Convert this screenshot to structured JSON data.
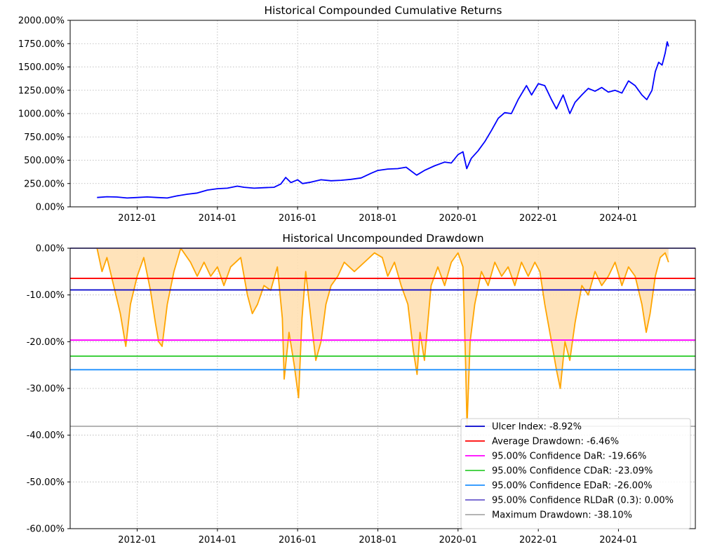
{
  "chart_data": [
    {
      "type": "line",
      "title": "Historical Compounded Cumulative Returns",
      "xlabel": "",
      "ylabel": "",
      "x_ticks": [
        "2012-01",
        "2014-01",
        "2016-01",
        "2018-01",
        "2020-01",
        "2022-01",
        "2024-01"
      ],
      "y_ticks": [
        "0.00%",
        "250.00%",
        "500.00%",
        "750.00%",
        "1000.00%",
        "1250.00%",
        "1500.00%",
        "1750.00%",
        "2000.00%"
      ],
      "xlim": [
        "2010-05-01",
        "2025-12-01"
      ],
      "ylim": [
        0,
        2000
      ],
      "grid": true,
      "series": [
        {
          "color": "#0000ff",
          "points": [
            [
              "2011-01-01",
              100
            ],
            [
              "2011-04-01",
              108
            ],
            [
              "2011-07-01",
              105
            ],
            [
              "2011-10-01",
              95
            ],
            [
              "2012-01-01",
              100
            ],
            [
              "2012-04-01",
              106
            ],
            [
              "2012-07-01",
              100
            ],
            [
              "2012-10-01",
              95
            ],
            [
              "2013-01-01",
              118
            ],
            [
              "2013-04-01",
              135
            ],
            [
              "2013-07-01",
              148
            ],
            [
              "2013-10-01",
              180
            ],
            [
              "2014-01-01",
              195
            ],
            [
              "2014-04-01",
              200
            ],
            [
              "2014-07-01",
              222
            ],
            [
              "2014-09-01",
              210
            ],
            [
              "2014-12-01",
              200
            ],
            [
              "2015-03-01",
              205
            ],
            [
              "2015-06-01",
              210
            ],
            [
              "2015-08-01",
              245
            ],
            [
              "2015-09-15",
              315
            ],
            [
              "2015-11-01",
              260
            ],
            [
              "2016-01-01",
              290
            ],
            [
              "2016-02-15",
              250
            ],
            [
              "2016-05-01",
              265
            ],
            [
              "2016-08-01",
              290
            ],
            [
              "2016-11-01",
              280
            ],
            [
              "2017-02-01",
              285
            ],
            [
              "2017-05-01",
              295
            ],
            [
              "2017-08-01",
              310
            ],
            [
              "2017-11-01",
              360
            ],
            [
              "2018-01-01",
              390
            ],
            [
              "2018-04-01",
              405
            ],
            [
              "2018-07-01",
              410
            ],
            [
              "2018-09-15",
              425
            ],
            [
              "2018-12-20",
              340
            ],
            [
              "2019-03-01",
              390
            ],
            [
              "2019-06-01",
              440
            ],
            [
              "2019-09-01",
              480
            ],
            [
              "2019-11-01",
              470
            ],
            [
              "2020-01-01",
              560
            ],
            [
              "2020-02-15",
              590
            ],
            [
              "2020-03-20",
              410
            ],
            [
              "2020-05-01",
              520
            ],
            [
              "2020-07-01",
              600
            ],
            [
              "2020-09-01",
              700
            ],
            [
              "2020-11-01",
              820
            ],
            [
              "2021-01-01",
              950
            ],
            [
              "2021-03-01",
              1010
            ],
            [
              "2021-05-01",
              1000
            ],
            [
              "2021-07-01",
              1150
            ],
            [
              "2021-09-15",
              1300
            ],
            [
              "2021-11-01",
              1200
            ],
            [
              "2022-01-01",
              1320
            ],
            [
              "2022-03-01",
              1300
            ],
            [
              "2022-05-01",
              1150
            ],
            [
              "2022-06-15",
              1050
            ],
            [
              "2022-08-15",
              1200
            ],
            [
              "2022-10-15",
              1000
            ],
            [
              "2022-12-01",
              1120
            ],
            [
              "2023-02-01",
              1200
            ],
            [
              "2023-04-01",
              1270
            ],
            [
              "2023-06-01",
              1240
            ],
            [
              "2023-08-01",
              1280
            ],
            [
              "2023-10-01",
              1230
            ],
            [
              "2023-12-01",
              1250
            ],
            [
              "2024-02-01",
              1220
            ],
            [
              "2024-04-01",
              1350
            ],
            [
              "2024-06-01",
              1300
            ],
            [
              "2024-08-01",
              1200
            ],
            [
              "2024-09-15",
              1150
            ],
            [
              "2024-11-01",
              1250
            ],
            [
              "2024-12-01",
              1450
            ],
            [
              "2025-01-01",
              1550
            ],
            [
              "2025-02-01",
              1520
            ],
            [
              "2025-03-01",
              1650
            ],
            [
              "2025-03-20",
              1770
            ],
            [
              "2025-04-01",
              1720
            ]
          ]
        }
      ]
    },
    {
      "type": "area",
      "title": "Historical Uncompounded Drawdown",
      "xlabel": "",
      "ylabel": "",
      "x_ticks": [
        "2012-01",
        "2014-01",
        "2016-01",
        "2018-01",
        "2020-01",
        "2022-01",
        "2024-01"
      ],
      "y_ticks": [
        "0.00%",
        "-10.00%",
        "-20.00%",
        "-30.00%",
        "-40.00%",
        "-50.00%",
        "-60.00%"
      ],
      "xlim": [
        "2010-05-01",
        "2025-12-01"
      ],
      "ylim": [
        -60,
        0
      ],
      "grid": true,
      "legend_position": "lower-right",
      "series": [
        {
          "name": "",
          "color": "#ffa500",
          "fill": "#ffe0b2",
          "points": [
            [
              "2011-01-01",
              0
            ],
            [
              "2011-02-15",
              -5
            ],
            [
              "2011-04-01",
              -2
            ],
            [
              "2011-06-01",
              -8
            ],
            [
              "2011-08-01",
              -14
            ],
            [
              "2011-09-20",
              -21
            ],
            [
              "2011-11-01",
              -12
            ],
            [
              "2012-01-01",
              -6
            ],
            [
              "2012-03-01",
              -2
            ],
            [
              "2012-05-01",
              -9
            ],
            [
              "2012-06-15",
              -16
            ],
            [
              "2012-07-15",
              -20
            ],
            [
              "2012-08-15",
              -21
            ],
            [
              "2012-10-01",
              -12
            ],
            [
              "2012-12-01",
              -5
            ],
            [
              "2013-02-01",
              0
            ],
            [
              "2013-05-01",
              -3
            ],
            [
              "2013-07-01",
              -6
            ],
            [
              "2013-09-01",
              -3
            ],
            [
              "2013-11-01",
              -6
            ],
            [
              "2014-01-01",
              -4
            ],
            [
              "2014-03-01",
              -8
            ],
            [
              "2014-05-01",
              -4
            ],
            [
              "2014-08-01",
              -2
            ],
            [
              "2014-10-01",
              -10
            ],
            [
              "2014-11-15",
              -14
            ],
            [
              "2015-01-01",
              -12
            ],
            [
              "2015-03-01",
              -8
            ],
            [
              "2015-05-01",
              -9
            ],
            [
              "2015-07-01",
              -4
            ],
            [
              "2015-08-15",
              -15
            ],
            [
              "2015-09-01",
              -28
            ],
            [
              "2015-10-15",
              -18
            ],
            [
              "2015-12-01",
              -25
            ],
            [
              "2016-01-10",
              -32
            ],
            [
              "2016-02-10",
              -15
            ],
            [
              "2016-03-15",
              -5
            ],
            [
              "2016-05-01",
              -15
            ],
            [
              "2016-06-15",
              -24
            ],
            [
              "2016-08-01",
              -20
            ],
            [
              "2016-09-15",
              -12
            ],
            [
              "2016-11-01",
              -8
            ],
            [
              "2017-01-01",
              -6
            ],
            [
              "2017-03-01",
              -3
            ],
            [
              "2017-06-01",
              -5
            ],
            [
              "2017-09-01",
              -3
            ],
            [
              "2017-12-01",
              -1
            ],
            [
              "2018-02-10",
              -2
            ],
            [
              "2018-04-01",
              -6
            ],
            [
              "2018-06-01",
              -3
            ],
            [
              "2018-08-01",
              -8
            ],
            [
              "2018-10-01",
              -12
            ],
            [
              "2018-11-20",
              -22
            ],
            [
              "2018-12-24",
              -27
            ],
            [
              "2019-01-20",
              -18
            ],
            [
              "2019-03-01",
              -24
            ],
            [
              "2019-05-01",
              -8
            ],
            [
              "2019-07-01",
              -4
            ],
            [
              "2019-09-01",
              -8
            ],
            [
              "2019-11-01",
              -3
            ],
            [
              "2020-01-01",
              -1
            ],
            [
              "2020-02-15",
              -4
            ],
            [
              "2020-03-10",
              -25
            ],
            [
              "2020-03-23",
              -38
            ],
            [
              "2020-04-20",
              -20
            ],
            [
              "2020-06-01",
              -12
            ],
            [
              "2020-08-01",
              -5
            ],
            [
              "2020-10-01",
              -8
            ],
            [
              "2020-12-01",
              -3
            ],
            [
              "2021-02-01",
              -6
            ],
            [
              "2021-04-01",
              -4
            ],
            [
              "2021-06-01",
              -8
            ],
            [
              "2021-08-01",
              -3
            ],
            [
              "2021-10-01",
              -6
            ],
            [
              "2021-12-01",
              -3
            ],
            [
              "2022-01-15",
              -5
            ],
            [
              "2022-03-01",
              -12
            ],
            [
              "2022-05-01",
              -20
            ],
            [
              "2022-06-15",
              -26
            ],
            [
              "2022-07-20",
              -30
            ],
            [
              "2022-09-01",
              -20
            ],
            [
              "2022-10-15",
              -24
            ],
            [
              "2022-12-01",
              -16
            ],
            [
              "2023-02-01",
              -8
            ],
            [
              "2023-04-01",
              -10
            ],
            [
              "2023-06-01",
              -5
            ],
            [
              "2023-08-01",
              -8
            ],
            [
              "2023-10-01",
              -6
            ],
            [
              "2023-12-01",
              -3
            ],
            [
              "2024-02-01",
              -8
            ],
            [
              "2024-04-01",
              -4
            ],
            [
              "2024-06-01",
              -6
            ],
            [
              "2024-08-01",
              -12
            ],
            [
              "2024-09-10",
              -18
            ],
            [
              "2024-10-15",
              -14
            ],
            [
              "2024-12-01",
              -6
            ],
            [
              "2025-01-15",
              -2
            ],
            [
              "2025-03-01",
              -1
            ],
            [
              "2025-04-01",
              -3
            ]
          ]
        }
      ],
      "hlines": [
        {
          "name": "Ulcer Index: -8.92%",
          "value": -8.92,
          "color": "#0000cd"
        },
        {
          "name": "Average Drawdown: -6.46%",
          "value": -6.46,
          "color": "#ff0000"
        },
        {
          "name": "95.00% Confidence DaR: -19.66%",
          "value": -19.66,
          "color": "#ff00ff"
        },
        {
          "name": "95.00% Confidence CDaR: -23.09%",
          "value": -23.09,
          "color": "#32cd32"
        },
        {
          "name": "95.00% Confidence EDaR: -26.00%",
          "value": -26.0,
          "color": "#1e90ff"
        },
        {
          "name": "95.00% Confidence RLDaR (0.3): 0.00%",
          "value": 0.0,
          "color": "#6a5acd"
        },
        {
          "name": "Maximum Drawdown: -38.10%",
          "value": -38.1,
          "color": "#a9a9a9"
        }
      ]
    }
  ]
}
